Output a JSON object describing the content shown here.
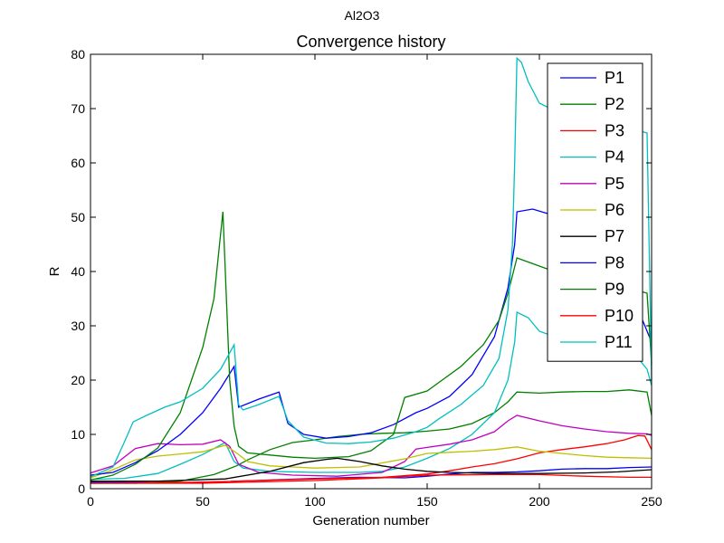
{
  "figure": {
    "suptitle": "Al2O3"
  },
  "chart_data": {
    "type": "line",
    "title": "Convergence history",
    "xlabel": "Generation number",
    "ylabel": "R",
    "xlim": [
      0,
      250
    ],
    "ylim": [
      0,
      80
    ],
    "xticks": [
      0,
      50,
      100,
      150,
      200,
      250
    ],
    "yticks": [
      0,
      10,
      20,
      30,
      40,
      50,
      60,
      70,
      80
    ],
    "grid": false,
    "legend_position": "top-right",
    "series": [
      {
        "name": "P1",
        "color": "#0000ff",
        "points": [
          [
            0,
            1.2
          ],
          [
            20,
            1.2
          ],
          [
            40,
            1.1
          ],
          [
            60,
            1.3
          ],
          [
            80,
            1.6
          ],
          [
            100,
            1.9
          ],
          [
            120,
            2.1
          ],
          [
            140,
            2.0
          ],
          [
            150,
            2.3
          ],
          [
            160,
            2.7
          ],
          [
            170,
            3.0
          ],
          [
            180,
            3.0
          ],
          [
            190,
            3.1
          ],
          [
            200,
            3.3
          ],
          [
            210,
            3.6
          ],
          [
            220,
            3.7
          ],
          [
            230,
            3.7
          ],
          [
            240,
            3.9
          ],
          [
            250,
            4.0
          ]
        ]
      },
      {
        "name": "P2",
        "color": "#008000",
        "points": [
          [
            0,
            1.0
          ],
          [
            20,
            1.0
          ],
          [
            40,
            1.4
          ],
          [
            55,
            2.6
          ],
          [
            60,
            3.4
          ],
          [
            65,
            4.2
          ],
          [
            70,
            5.3
          ],
          [
            80,
            7.2
          ],
          [
            90,
            8.5
          ],
          [
            100,
            9.0
          ],
          [
            110,
            9.6
          ],
          [
            120,
            10.0
          ],
          [
            130,
            10.2
          ],
          [
            140,
            10.3
          ],
          [
            150,
            10.6
          ],
          [
            160,
            11.0
          ],
          [
            170,
            12.0
          ],
          [
            180,
            14.0
          ],
          [
            186,
            16.0
          ],
          [
            190,
            17.8
          ],
          [
            200,
            17.6
          ],
          [
            210,
            17.8
          ],
          [
            220,
            17.9
          ],
          [
            230,
            17.9
          ],
          [
            240,
            18.2
          ],
          [
            248,
            17.8
          ],
          [
            250,
            13.5
          ]
        ]
      },
      {
        "name": "P3",
        "color": "#ff0000",
        "points": [
          [
            0,
            1.0
          ],
          [
            50,
            1.2
          ],
          [
            100,
            1.8
          ],
          [
            130,
            2.1
          ],
          [
            150,
            2.7
          ],
          [
            160,
            3.3
          ],
          [
            170,
            4.0
          ],
          [
            180,
            4.6
          ],
          [
            190,
            5.5
          ],
          [
            200,
            6.6
          ],
          [
            210,
            7.2
          ],
          [
            220,
            7.7
          ],
          [
            230,
            8.3
          ],
          [
            238,
            9.0
          ],
          [
            244,
            9.8
          ],
          [
            247,
            9.7
          ],
          [
            250,
            7.2
          ]
        ]
      },
      {
        "name": "P4",
        "color": "#00bfbf",
        "points": [
          [
            0,
            1.7
          ],
          [
            15,
            1.9
          ],
          [
            30,
            2.8
          ],
          [
            40,
            4.5
          ],
          [
            50,
            6.3
          ],
          [
            60,
            8.5
          ],
          [
            64,
            5.0
          ],
          [
            68,
            3.8
          ],
          [
            80,
            3.2
          ],
          [
            100,
            3.0
          ],
          [
            120,
            3.0
          ],
          [
            130,
            3.2
          ],
          [
            140,
            4.0
          ],
          [
            150,
            5.6
          ],
          [
            160,
            7.4
          ],
          [
            170,
            10.0
          ],
          [
            180,
            14.0
          ],
          [
            186,
            20.0
          ],
          [
            189,
            27.0
          ],
          [
            190,
            32.5
          ],
          [
            195,
            31.5
          ],
          [
            200,
            29.0
          ],
          [
            210,
            27.5
          ],
          [
            220,
            26.0
          ],
          [
            230,
            25.0
          ],
          [
            240,
            24.0
          ],
          [
            245,
            23.5
          ],
          [
            248,
            22.0
          ],
          [
            250,
            19.0
          ]
        ]
      },
      {
        "name": "P5",
        "color": "#bf00bf",
        "points": [
          [
            0,
            2.9
          ],
          [
            10,
            4.2
          ],
          [
            20,
            7.4
          ],
          [
            30,
            8.3
          ],
          [
            40,
            8.1
          ],
          [
            50,
            8.2
          ],
          [
            58,
            9.0
          ],
          [
            62,
            7.8
          ],
          [
            66,
            4.5
          ],
          [
            75,
            3.0
          ],
          [
            90,
            2.5
          ],
          [
            110,
            2.3
          ],
          [
            130,
            3.0
          ],
          [
            140,
            5.0
          ],
          [
            145,
            7.3
          ],
          [
            150,
            7.6
          ],
          [
            160,
            8.2
          ],
          [
            170,
            9.0
          ],
          [
            180,
            10.5
          ],
          [
            186,
            12.5
          ],
          [
            190,
            13.5
          ],
          [
            200,
            12.5
          ],
          [
            210,
            11.6
          ],
          [
            220,
            11.0
          ],
          [
            230,
            10.5
          ],
          [
            240,
            10.2
          ],
          [
            248,
            10.1
          ],
          [
            250,
            9.8
          ]
        ]
      },
      {
        "name": "P6",
        "color": "#bfbf00",
        "points": [
          [
            0,
            2.0
          ],
          [
            10,
            3.5
          ],
          [
            20,
            5.3
          ],
          [
            30,
            6.0
          ],
          [
            40,
            6.4
          ],
          [
            50,
            6.8
          ],
          [
            60,
            8.0
          ],
          [
            65,
            6.6
          ],
          [
            70,
            5.0
          ],
          [
            80,
            4.2
          ],
          [
            90,
            4.0
          ],
          [
            100,
            3.8
          ],
          [
            120,
            4.0
          ],
          [
            140,
            5.5
          ],
          [
            150,
            6.5
          ],
          [
            160,
            6.7
          ],
          [
            170,
            6.9
          ],
          [
            180,
            7.2
          ],
          [
            190,
            7.7
          ],
          [
            200,
            6.9
          ],
          [
            210,
            6.5
          ],
          [
            220,
            6.1
          ],
          [
            230,
            5.8
          ],
          [
            240,
            5.7
          ],
          [
            250,
            5.6
          ]
        ]
      },
      {
        "name": "P7",
        "color": "#000000",
        "points": [
          [
            0,
            1.4
          ],
          [
            30,
            1.4
          ],
          [
            60,
            1.8
          ],
          [
            80,
            3.2
          ],
          [
            95,
            4.8
          ],
          [
            105,
            5.4
          ],
          [
            110,
            5.6
          ],
          [
            120,
            5.0
          ],
          [
            130,
            4.2
          ],
          [
            140,
            3.6
          ],
          [
            150,
            3.2
          ],
          [
            160,
            3.0
          ],
          [
            170,
            2.9
          ],
          [
            180,
            2.8
          ],
          [
            200,
            2.8
          ],
          [
            220,
            2.9
          ],
          [
            235,
            3.1
          ],
          [
            250,
            3.5
          ]
        ]
      },
      {
        "name": "P8",
        "color": "#0000ff",
        "points": [
          [
            0,
            2.5
          ],
          [
            10,
            3.0
          ],
          [
            20,
            4.8
          ],
          [
            30,
            7.0
          ],
          [
            40,
            10.0
          ],
          [
            50,
            14.0
          ],
          [
            58,
            18.5
          ],
          [
            64,
            22.5
          ],
          [
            66,
            15.0
          ],
          [
            75,
            16.5
          ],
          [
            84,
            17.8
          ],
          [
            88,
            12.0
          ],
          [
            95,
            10.0
          ],
          [
            105,
            9.3
          ],
          [
            115,
            9.6
          ],
          [
            125,
            10.3
          ],
          [
            135,
            11.8
          ],
          [
            145,
            14.0
          ],
          [
            150,
            14.8
          ],
          [
            160,
            17.0
          ],
          [
            170,
            21.0
          ],
          [
            180,
            28.0
          ],
          [
            186,
            37.0
          ],
          [
            189,
            45.0
          ],
          [
            190,
            51.0
          ],
          [
            197,
            51.5
          ],
          [
            205,
            50.5
          ],
          [
            215,
            48.0
          ],
          [
            225,
            45.0
          ],
          [
            235,
            38.0
          ],
          [
            245,
            32.0
          ],
          [
            250,
            27.0
          ]
        ]
      },
      {
        "name": "P9",
        "color": "#008000",
        "points": [
          [
            0,
            1.6
          ],
          [
            10,
            2.5
          ],
          [
            20,
            4.5
          ],
          [
            30,
            7.5
          ],
          [
            40,
            14.0
          ],
          [
            50,
            26.0
          ],
          [
            55,
            35.0
          ],
          [
            59,
            51.0
          ],
          [
            62,
            20.0
          ],
          [
            64,
            11.5
          ],
          [
            66,
            7.8
          ],
          [
            70,
            6.6
          ],
          [
            80,
            6.2
          ],
          [
            90,
            5.8
          ],
          [
            100,
            5.6
          ],
          [
            115,
            5.9
          ],
          [
            125,
            7.0
          ],
          [
            135,
            10.0
          ],
          [
            140,
            16.8
          ],
          [
            150,
            18.0
          ],
          [
            155,
            19.5
          ],
          [
            165,
            22.5
          ],
          [
            175,
            26.5
          ],
          [
            182,
            31.0
          ],
          [
            186,
            36.0
          ],
          [
            190,
            42.5
          ],
          [
            200,
            41.0
          ],
          [
            210,
            39.5
          ],
          [
            220,
            38.5
          ],
          [
            230,
            37.5
          ],
          [
            240,
            37.0
          ],
          [
            248,
            36.0
          ],
          [
            250,
            23.0
          ]
        ]
      },
      {
        "name": "P10",
        "color": "#ff0000",
        "points": [
          [
            0,
            1.0
          ],
          [
            50,
            1.0
          ],
          [
            100,
            1.5
          ],
          [
            130,
            2.0
          ],
          [
            150,
            2.5
          ],
          [
            180,
            2.6
          ],
          [
            200,
            2.6
          ],
          [
            220,
            2.3
          ],
          [
            240,
            2.1
          ],
          [
            250,
            2.1
          ]
        ]
      },
      {
        "name": "P11",
        "color": "#00bfbf",
        "points": [
          [
            0,
            2.2
          ],
          [
            10,
            4.0
          ],
          [
            15,
            8.5
          ],
          [
            19,
            12.3
          ],
          [
            25,
            13.5
          ],
          [
            33,
            15.0
          ],
          [
            40,
            16.0
          ],
          [
            50,
            18.5
          ],
          [
            58,
            22.0
          ],
          [
            64,
            26.5
          ],
          [
            66,
            15.5
          ],
          [
            68,
            14.5
          ],
          [
            75,
            15.5
          ],
          [
            84,
            17.0
          ],
          [
            88,
            12.5
          ],
          [
            95,
            9.5
          ],
          [
            105,
            8.4
          ],
          [
            115,
            8.3
          ],
          [
            125,
            8.6
          ],
          [
            135,
            9.3
          ],
          [
            145,
            10.5
          ],
          [
            150,
            11.3
          ],
          [
            155,
            12.8
          ],
          [
            165,
            15.5
          ],
          [
            175,
            19.0
          ],
          [
            182,
            24.0
          ],
          [
            186,
            33.0
          ],
          [
            188,
            45.0
          ],
          [
            189,
            60.0
          ],
          [
            190,
            79.3
          ],
          [
            192,
            78.5
          ],
          [
            195,
            75.0
          ],
          [
            200,
            71.0
          ],
          [
            210,
            69.0
          ],
          [
            220,
            68.5
          ],
          [
            230,
            67.5
          ],
          [
            240,
            66.5
          ],
          [
            248,
            65.5
          ],
          [
            250,
            20.0
          ]
        ]
      }
    ]
  }
}
